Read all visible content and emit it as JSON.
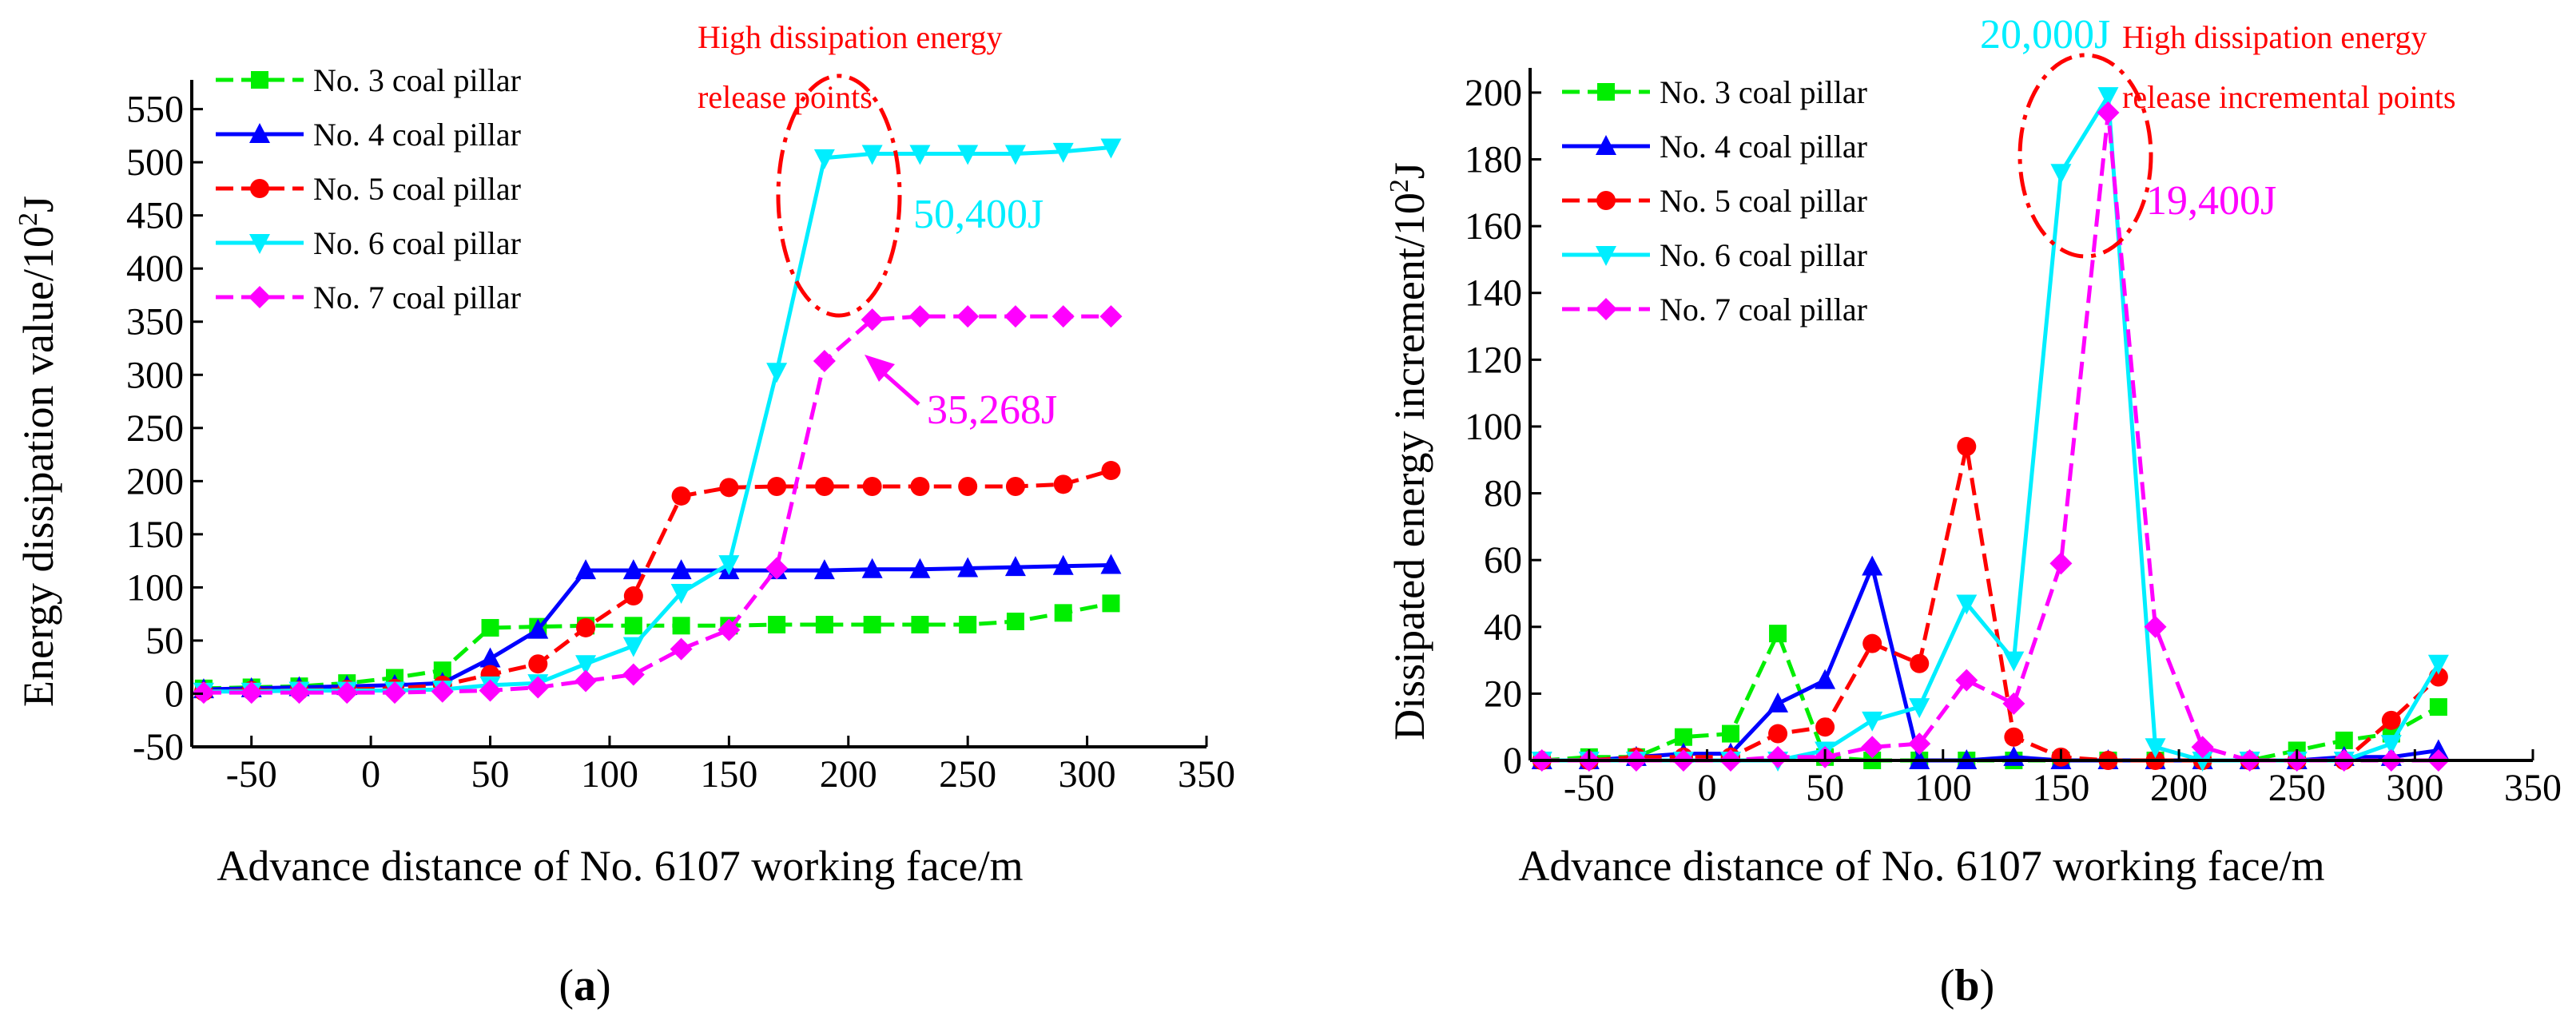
{
  "chart_data": [
    {
      "type": "line",
      "panel": "a",
      "caption": {
        "open": "(",
        "letter": "a",
        "close": ")"
      },
      "xlabel": "Advance distance of No. 6107 working face/m",
      "ylabel": "Energy dissipation value/10",
      "ylabel_sup": "2",
      "ylabel_unit": "J",
      "xlim": [
        -75,
        350
      ],
      "ylim": [
        -50,
        570
      ],
      "xticks": [
        -50,
        0,
        50,
        100,
        150,
        200,
        250,
        300,
        350
      ],
      "yticks": [
        -50,
        0,
        50,
        100,
        150,
        200,
        250,
        300,
        350,
        400,
        450,
        500,
        550
      ],
      "x": [
        -70,
        -50,
        -30,
        -10,
        10,
        30,
        50,
        70,
        90,
        110,
        130,
        150,
        170,
        190,
        210,
        230,
        250,
        270,
        290,
        310
      ],
      "series": [
        {
          "name": "No. 3 coal pillar",
          "color": "#00ee00",
          "marker": "square",
          "values": [
            5,
            6,
            7,
            10,
            15,
            22,
            62,
            63,
            64,
            64,
            64,
            64,
            65,
            65,
            65,
            65,
            65,
            68,
            76,
            85
          ]
        },
        {
          "name": "No. 4 coal pillar",
          "color": "#0000ff",
          "marker": "triangle-up",
          "values": [
            4,
            5,
            6,
            7,
            8,
            10,
            33,
            60,
            116,
            116,
            116,
            116,
            116,
            116,
            117,
            117,
            118,
            119,
            120,
            121
          ]
        },
        {
          "name": "No. 5 coal pillar",
          "color": "#ff0000",
          "marker": "circle",
          "values": [
            2,
            3,
            3,
            4,
            5,
            8,
            18,
            28,
            62,
            92,
            186,
            194,
            195,
            195,
            195,
            195,
            195,
            195,
            197,
            210
          ]
        },
        {
          "name": "No. 6 coal pillar",
          "color": "#00eeff",
          "marker": "triangle-down",
          "values": [
            2,
            2,
            3,
            3,
            3,
            4,
            8,
            10,
            28,
            45,
            95,
            122,
            303,
            504,
            508,
            508,
            508,
            508,
            510,
            514
          ]
        },
        {
          "name": "No. 7 coal pillar",
          "color": "#ff00ff",
          "marker": "diamond",
          "values": [
            1,
            1,
            1,
            1,
            1,
            2,
            3,
            6,
            12,
            18,
            42,
            60,
            118,
            313,
            352,
            355,
            355,
            355,
            355,
            355
          ]
        }
      ],
      "annotations": {
        "release_line1": "High dissipation energy",
        "release_line2": "release points",
        "value_cyan": "50,400J",
        "value_magenta": "35,268J"
      }
    },
    {
      "type": "line",
      "panel": "b",
      "caption": {
        "open": "(",
        "letter": "b",
        "close": ")"
      },
      "xlabel": "Advance distance of No. 6107 working face/m",
      "ylabel": "Dissipated energy increment/10",
      "ylabel_sup": "2",
      "ylabel_unit": "J",
      "xlim": [
        -75,
        350
      ],
      "ylim": [
        0,
        205
      ],
      "xticks": [
        -50,
        0,
        50,
        100,
        150,
        200,
        250,
        300,
        350
      ],
      "yticks": [
        0,
        20,
        40,
        60,
        80,
        100,
        120,
        140,
        160,
        180,
        200
      ],
      "x": [
        -70,
        -50,
        -30,
        -10,
        10,
        30,
        50,
        70,
        90,
        110,
        130,
        150,
        170,
        190,
        210,
        230,
        250,
        270,
        290,
        310
      ],
      "series": [
        {
          "name": "No. 3 coal pillar",
          "color": "#00ee00",
          "marker": "square",
          "values": [
            0,
            1,
            1,
            7,
            8,
            38,
            1,
            0,
            0,
            0,
            0,
            0,
            0,
            0,
            0,
            0,
            3,
            6,
            8,
            16
          ]
        },
        {
          "name": "No. 4 coal pillar",
          "color": "#0000ff",
          "marker": "triangle-up",
          "values": [
            0,
            0,
            1,
            2,
            2,
            17,
            24,
            58,
            0,
            0,
            1,
            0,
            0,
            0,
            0,
            0,
            0,
            1,
            1,
            3
          ]
        },
        {
          "name": "No. 5 coal pillar",
          "color": "#ff0000",
          "marker": "circle",
          "values": [
            0,
            0,
            1,
            1,
            1,
            8,
            10,
            35,
            29,
            94,
            7,
            1,
            0,
            0,
            0,
            0,
            0,
            0,
            12,
            25
          ]
        },
        {
          "name": "No. 6 coal pillar",
          "color": "#00eeff",
          "marker": "triangle-down",
          "values": [
            0,
            0,
            0,
            0,
            0,
            0,
            3,
            12,
            16,
            47,
            30,
            176,
            199,
            4,
            0,
            0,
            0,
            0,
            5,
            29
          ]
        },
        {
          "name": "No. 7 coal pillar",
          "color": "#ff00ff",
          "marker": "diamond",
          "values": [
            0,
            0,
            0,
            0,
            0,
            1,
            1,
            4,
            5,
            24,
            17,
            59,
            194,
            40,
            4,
            0,
            0,
            0,
            0,
            0
          ]
        }
      ],
      "annotations": {
        "release_line1": "High dissipation energy",
        "release_line2": "release incremental points",
        "value_cyan": "20,000J",
        "value_magenta": "19,400J"
      }
    }
  ]
}
